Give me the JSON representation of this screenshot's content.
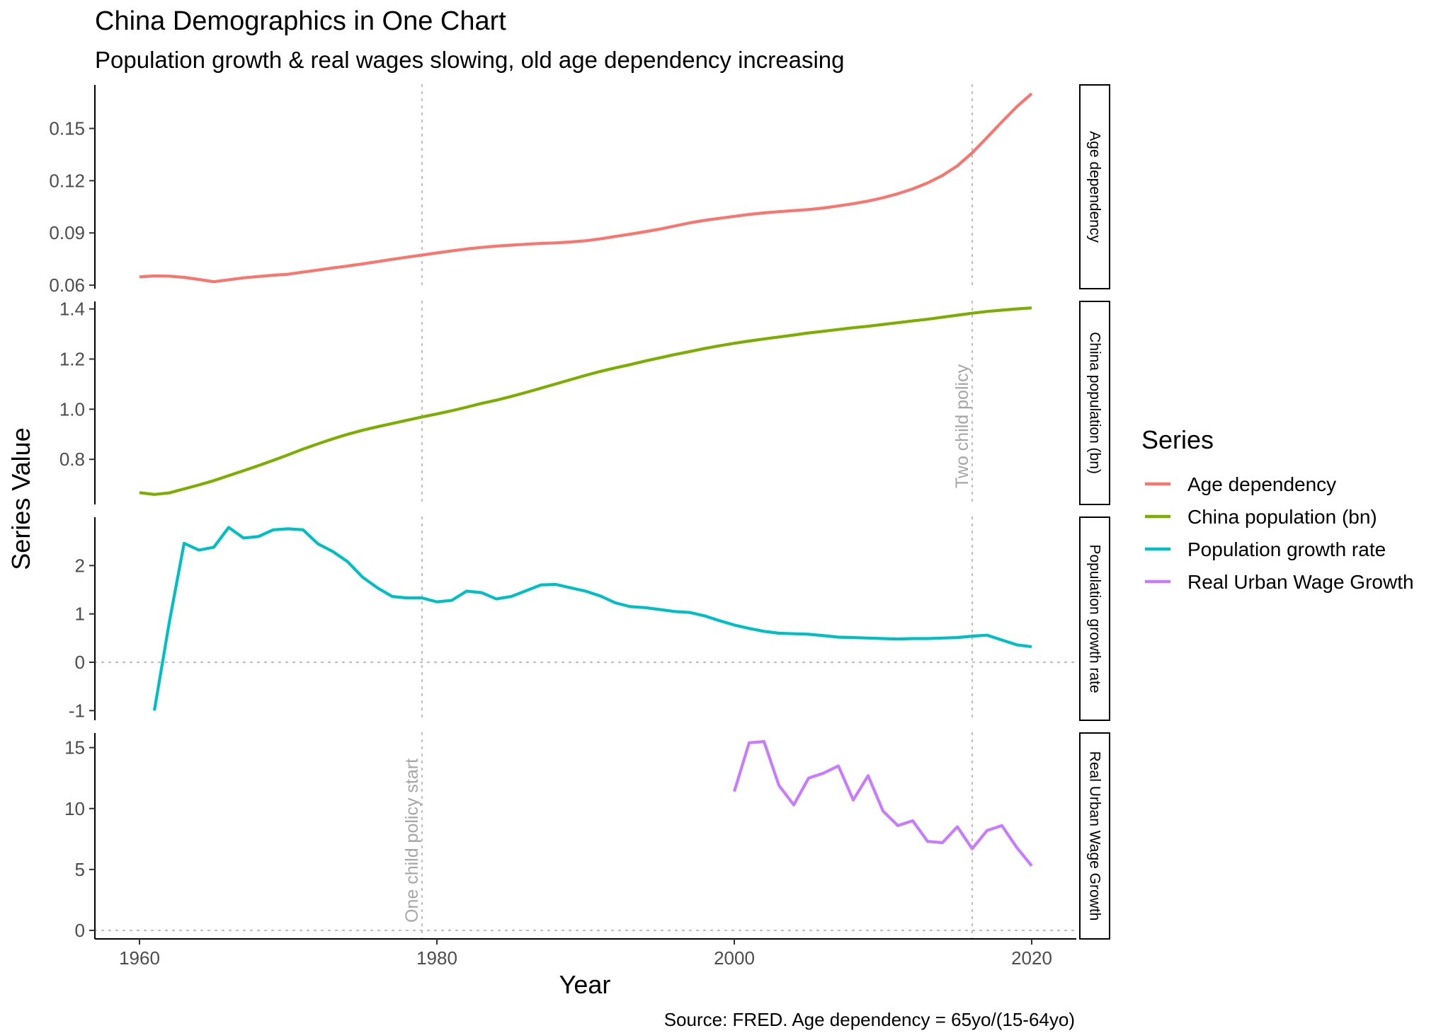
{
  "title": "China Demographics in One Chart",
  "subtitle": "Population growth & real wages slowing, old age dependency increasing",
  "caption": "Source: FRED. Age dependency = 65yo/(15-64yo)",
  "chart_data": {
    "type": "line",
    "title": "China Demographics in One Chart",
    "subtitle": "Population growth & real wages slowing, old age dependency increasing",
    "xlabel": "Year",
    "ylabel": "Series Value",
    "xlim": [
      1957,
      2023
    ],
    "x_ticks": [
      1960,
      1980,
      2000,
      2020
    ],
    "grid": false,
    "legend": {
      "title": "Series",
      "position": "right"
    },
    "vlines": [
      {
        "x": 1979,
        "label": "One child policy start"
      },
      {
        "x": 2016,
        "label": "Two child policy"
      }
    ],
    "hline": 0,
    "panels": [
      {
        "strip": "Age dependency",
        "ylim": [
          0.058,
          0.175
        ],
        "y_ticks": [
          0.06,
          0.09,
          0.12,
          0.15
        ],
        "y_tick_labels": [
          "0.06",
          "0.09",
          "0.12",
          "0.15"
        ]
      },
      {
        "strip": "China population (bn)",
        "ylim": [
          0.62,
          1.43
        ],
        "y_ticks": [
          0.8,
          1.0,
          1.2,
          1.4
        ],
        "y_tick_labels": [
          "0.8",
          "1.0",
          "1.2",
          "1.4"
        ]
      },
      {
        "strip": "Population growth rate",
        "ylim": [
          -1.2,
          3.0
        ],
        "y_ticks": [
          -1,
          0,
          1,
          2
        ],
        "y_tick_labels": [
          "-1",
          "0",
          "1",
          "2"
        ]
      },
      {
        "strip": "Real Urban Wage Growth",
        "ylim": [
          -0.7,
          16.2
        ],
        "y_ticks": [
          0,
          5,
          10,
          15
        ],
        "y_tick_labels": [
          "0",
          "5",
          "10",
          "15"
        ]
      }
    ],
    "series": [
      {
        "name": "Age dependency",
        "color": "#F8766D",
        "panel": 0,
        "x": [
          1960,
          1961,
          1962,
          1963,
          1964,
          1965,
          1966,
          1967,
          1968,
          1969,
          1970,
          1971,
          1972,
          1973,
          1974,
          1975,
          1976,
          1977,
          1978,
          1979,
          1980,
          1981,
          1982,
          1983,
          1984,
          1985,
          1986,
          1987,
          1988,
          1989,
          1990,
          1991,
          1992,
          1993,
          1994,
          1995,
          1996,
          1997,
          1998,
          1999,
          2000,
          2001,
          2002,
          2003,
          2004,
          2005,
          2006,
          2007,
          2008,
          2009,
          2010,
          2011,
          2012,
          2013,
          2014,
          2015,
          2016,
          2017,
          2018,
          2019,
          2020
        ],
        "y": [
          0.0648,
          0.0653,
          0.0652,
          0.0645,
          0.0633,
          0.062,
          0.0631,
          0.0642,
          0.065,
          0.0657,
          0.0663,
          0.0675,
          0.0687,
          0.0699,
          0.071,
          0.0722,
          0.0735,
          0.0748,
          0.0761,
          0.0773,
          0.0785,
          0.0797,
          0.0808,
          0.0817,
          0.0824,
          0.083,
          0.0835,
          0.084,
          0.0843,
          0.0848,
          0.0855,
          0.0866,
          0.088,
          0.0893,
          0.0907,
          0.0922,
          0.094,
          0.0958,
          0.0972,
          0.0984,
          0.0995,
          0.1006,
          0.1015,
          0.1022,
          0.1028,
          0.1034,
          0.1043,
          0.1055,
          0.1068,
          0.1083,
          0.1102,
          0.1125,
          0.1153,
          0.1187,
          0.123,
          0.1285,
          0.136,
          0.1448,
          0.1538,
          0.1625,
          0.17
        ]
      },
      {
        "name": "China population (bn)",
        "color": "#7CAE00",
        "panel": 1,
        "x": [
          1960,
          1961,
          1962,
          1963,
          1964,
          1965,
          1966,
          1967,
          1968,
          1969,
          1970,
          1971,
          1972,
          1973,
          1974,
          1975,
          1976,
          1977,
          1978,
          1979,
          1980,
          1981,
          1982,
          1983,
          1984,
          1985,
          1986,
          1987,
          1988,
          1989,
          1990,
          1991,
          1992,
          1993,
          1994,
          1995,
          1996,
          1997,
          1998,
          1999,
          2000,
          2001,
          2002,
          2003,
          2004,
          2005,
          2006,
          2007,
          2008,
          2009,
          2010,
          2011,
          2012,
          2013,
          2014,
          2015,
          2016,
          2017,
          2018,
          2019,
          2020
        ],
        "y": [
          0.667,
          0.66,
          0.666,
          0.682,
          0.698,
          0.715,
          0.735,
          0.755,
          0.775,
          0.796,
          0.818,
          0.841,
          0.862,
          0.882,
          0.9,
          0.916,
          0.93,
          0.943,
          0.956,
          0.969,
          0.981,
          0.994,
          1.008,
          1.023,
          1.036,
          1.051,
          1.067,
          1.084,
          1.101,
          1.118,
          1.135,
          1.151,
          1.165,
          1.178,
          1.192,
          1.205,
          1.218,
          1.23,
          1.242,
          1.253,
          1.263,
          1.272,
          1.28,
          1.288,
          1.296,
          1.304,
          1.311,
          1.318,
          1.325,
          1.331,
          1.338,
          1.345,
          1.352,
          1.359,
          1.367,
          1.375,
          1.383,
          1.39,
          1.395,
          1.4,
          1.404
        ]
      },
      {
        "name": "Population growth rate",
        "color": "#00BFC4",
        "panel": 2,
        "x": [
          1961,
          1962,
          1963,
          1964,
          1965,
          1966,
          1967,
          1968,
          1969,
          1970,
          1971,
          1972,
          1973,
          1974,
          1975,
          1976,
          1977,
          1978,
          1979,
          1980,
          1981,
          1982,
          1983,
          1984,
          1985,
          1986,
          1987,
          1988,
          1989,
          1990,
          1991,
          1992,
          1993,
          1994,
          1995,
          1996,
          1997,
          1998,
          1999,
          2000,
          2001,
          2002,
          2003,
          2004,
          2005,
          2006,
          2007,
          2008,
          2009,
          2010,
          2011,
          2012,
          2013,
          2014,
          2015,
          2016,
          2017,
          2018,
          2019,
          2020
        ],
        "y": [
          -1.0,
          0.82,
          2.46,
          2.32,
          2.38,
          2.79,
          2.57,
          2.6,
          2.74,
          2.76,
          2.74,
          2.45,
          2.29,
          2.08,
          1.76,
          1.54,
          1.36,
          1.33,
          1.33,
          1.25,
          1.28,
          1.47,
          1.44,
          1.31,
          1.36,
          1.48,
          1.6,
          1.61,
          1.54,
          1.47,
          1.37,
          1.23,
          1.15,
          1.13,
          1.09,
          1.05,
          1.03,
          0.96,
          0.86,
          0.77,
          0.7,
          0.64,
          0.6,
          0.59,
          0.58,
          0.55,
          0.52,
          0.51,
          0.5,
          0.49,
          0.48,
          0.49,
          0.49,
          0.5,
          0.51,
          0.54,
          0.56,
          0.46,
          0.36,
          0.32
        ]
      },
      {
        "name": "Real Urban Wage Growth",
        "color": "#C77CFF",
        "panel": 3,
        "x": [
          2000,
          2001,
          2002,
          2003,
          2004,
          2005,
          2006,
          2007,
          2008,
          2009,
          2010,
          2011,
          2012,
          2013,
          2014,
          2015,
          2016,
          2017,
          2018,
          2019,
          2020
        ],
        "y": [
          11.4,
          15.4,
          15.5,
          11.9,
          10.3,
          12.5,
          12.9,
          13.5,
          10.7,
          12.7,
          9.8,
          8.6,
          9.0,
          7.3,
          7.2,
          8.5,
          6.7,
          8.2,
          8.6,
          6.8,
          5.3
        ]
      }
    ]
  }
}
